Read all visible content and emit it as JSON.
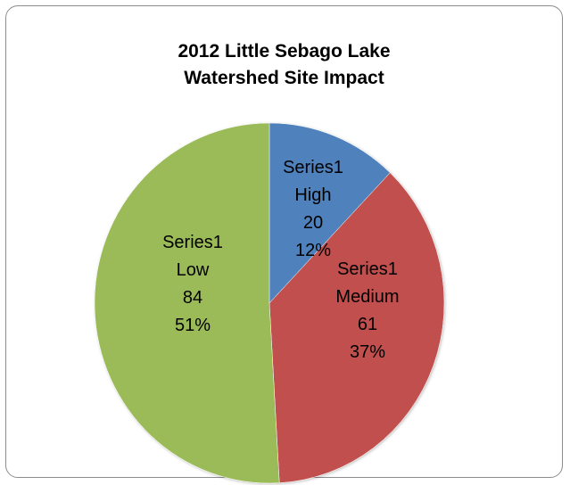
{
  "chart_data": {
    "type": "pie",
    "title": "2012 Little Sebago Lake Watershed Site Impact",
    "title_lines": [
      "2012 Little Sebago Lake",
      "Watershed Site Impact"
    ],
    "series_name": "Series1",
    "slices": [
      {
        "category": "High",
        "value": 20,
        "percent": "12%",
        "color": "#4f81bd"
      },
      {
        "category": "Medium",
        "value": 61,
        "percent": "37%",
        "color": "#c0504d"
      },
      {
        "category": "Low",
        "value": 84,
        "percent": "51%",
        "color": "#9bbb59"
      }
    ],
    "start_angle_deg": 0,
    "direction": "clockwise",
    "legend": "none"
  }
}
